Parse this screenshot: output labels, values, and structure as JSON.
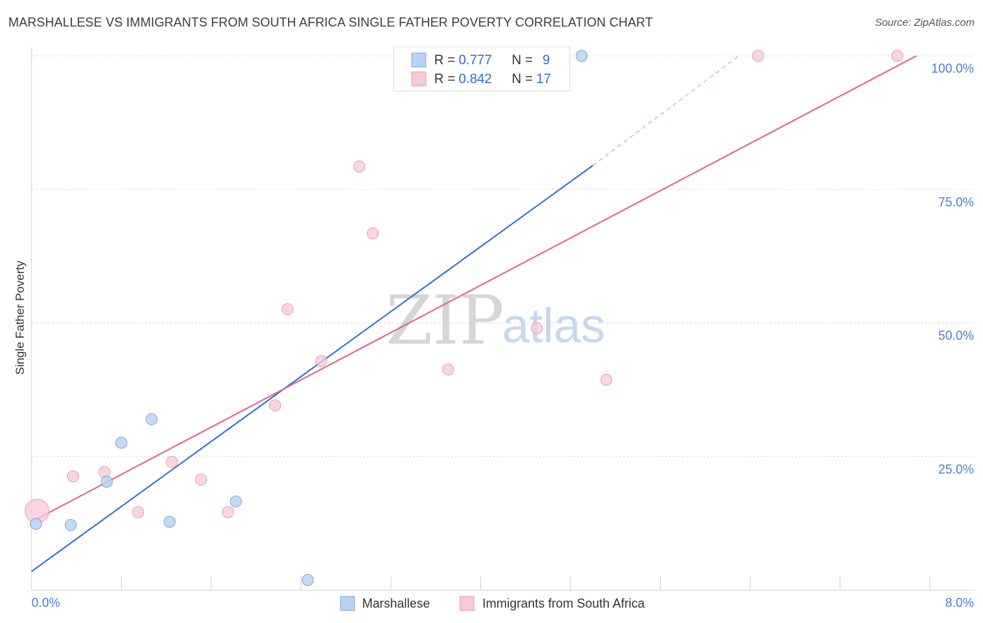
{
  "header": {
    "title": "MARSHALLESE VS IMMIGRANTS FROM SOUTH AFRICA SINGLE FATHER POVERTY CORRELATION CHART",
    "source": "Source: ZipAtlas.com"
  },
  "watermark": {
    "zip": "ZIP",
    "atlas": "atlas"
  },
  "colors": {
    "blue_fill": "#b9d3f5",
    "blue_stroke": "#7ea6de",
    "blue_line": "#2f6fce",
    "pink_fill": "#f8c9d6",
    "pink_stroke": "#e99ab2",
    "pink_line": "#e0648c",
    "grid": "#dcdcdc",
    "tick_label": "#4a7fd4"
  },
  "legend": {
    "rows": [
      {
        "r_label": "R =",
        "r_value": "0.777",
        "n_label": "N =",
        "n_value": "9",
        "color": "#b9d3f5"
      },
      {
        "r_label": "R =",
        "r_value": "0.842",
        "n_label": "N =",
        "n_value": "17",
        "color": "#f8c9d6"
      }
    ]
  },
  "bottom_legend": [
    {
      "label": "Marshallese",
      "color": "#b9d3f5"
    },
    {
      "label": "Immigrants from South Africa",
      "color": "#f8c9d6"
    }
  ],
  "chart_data": {
    "type": "scatter",
    "title": "MARSHALLESE VS IMMIGRANTS FROM SOUTH AFRICA SINGLE FATHER POVERTY CORRELATION CHART",
    "xlabel": "",
    "ylabel": "Single Father Poverty",
    "xlim": [
      0,
      8
    ],
    "ylim": [
      0,
      100
    ],
    "x_tick_labels": [
      "0.0%",
      "8.0%"
    ],
    "y_tick_labels": [
      "25.0%",
      "50.0%",
      "75.0%",
      "100.0%"
    ],
    "y_ticks": [
      25,
      50,
      75,
      100
    ],
    "grid": true,
    "legend_position": "top-center",
    "series": [
      {
        "name": "Marshallese",
        "color": "#b9d3f5",
        "points": [
          {
            "x": 0.04,
            "y": 12.4
          },
          {
            "x": 0.35,
            "y": 12.2
          },
          {
            "x": 0.67,
            "y": 20.3
          },
          {
            "x": 0.8,
            "y": 27.6
          },
          {
            "x": 1.07,
            "y": 32.0
          },
          {
            "x": 1.23,
            "y": 12.8
          },
          {
            "x": 1.82,
            "y": 16.6
          },
          {
            "x": 2.46,
            "y": 1.9
          },
          {
            "x": 4.9,
            "y": 100.0
          }
        ],
        "trend": {
          "x0": 0.0,
          "y0": 3.5,
          "x1": 5.0,
          "y1": 79.5,
          "dash_to_x": 6.3,
          "dash_to_y": 100.0
        }
      },
      {
        "name": "Immigrants from South Africa",
        "color": "#f8c9d6",
        "points": [
          {
            "x": 0.05,
            "y": 14.8,
            "size": "large"
          },
          {
            "x": 0.37,
            "y": 21.3
          },
          {
            "x": 0.65,
            "y": 22.1
          },
          {
            "x": 0.95,
            "y": 14.6
          },
          {
            "x": 1.25,
            "y": 24.0
          },
          {
            "x": 1.51,
            "y": 20.7
          },
          {
            "x": 1.75,
            "y": 14.6
          },
          {
            "x": 2.17,
            "y": 34.6
          },
          {
            "x": 2.28,
            "y": 52.6
          },
          {
            "x": 2.58,
            "y": 42.9
          },
          {
            "x": 2.92,
            "y": 79.3
          },
          {
            "x": 3.04,
            "y": 66.8
          },
          {
            "x": 3.71,
            "y": 41.3
          },
          {
            "x": 4.5,
            "y": 49.0
          },
          {
            "x": 5.12,
            "y": 39.4
          },
          {
            "x": 6.47,
            "y": 100.0
          },
          {
            "x": 7.71,
            "y": 100.0
          }
        ],
        "trend": {
          "x0": 0.0,
          "y0": 12.8,
          "x1": 7.88,
          "y1": 100.0
        }
      }
    ]
  }
}
